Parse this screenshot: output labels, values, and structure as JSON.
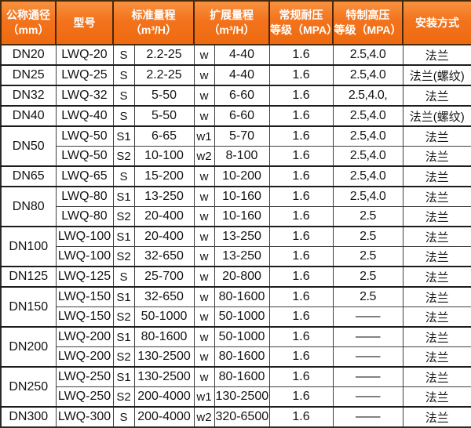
{
  "colors": {
    "header_bg": "#f3731c",
    "header_bg_light": "#f8913f",
    "header_bg_dark": "#ee6a10",
    "header_text": "#ffffff",
    "header_divider": "#46280a",
    "outer_border": "#2b2b29",
    "cell_border": "#3f3f3d",
    "body_text": "#141414"
  },
  "header": {
    "cells": [
      {
        "line1": "公称通径",
        "line2": "（mm）"
      },
      {
        "line1": "型号",
        "line2": ""
      },
      {
        "line1": "标准量程",
        "line2": "（m³/H）"
      },
      {
        "line1": "扩展量程",
        "line2": "（m³/H）"
      },
      {
        "line1": "常规耐压",
        "line2": "等级（MPA）"
      },
      {
        "line1": "特制高压",
        "line2": "等级（MPA）"
      },
      {
        "line1": "安装方式",
        "line2": ""
      }
    ]
  },
  "chart_data": {
    "type": "table",
    "columns": [
      "公称通径（mm）",
      "型号",
      "标准量程代号",
      "标准量程（m³/H）",
      "扩展量程代号",
      "扩展量程（m³/H）",
      "常规耐压等级（MPA）",
      "特制高压等级（MPA）",
      "安装方式"
    ]
  },
  "rows": [
    {
      "dn": "DN20",
      "span": 1,
      "group_start": true,
      "model": "LWQ-20",
      "s": "S",
      "std": "2.2-25",
      "w": "w",
      "ext": "4-40",
      "mpa": "1.6",
      "hp": "2.5,4.0",
      "mount": "法兰"
    },
    {
      "dn": "DN25",
      "span": 1,
      "group_start": true,
      "model": "LWQ-25",
      "s": "S",
      "std": "2.2-25",
      "w": "w",
      "ext": "4-40",
      "mpa": "1.6",
      "hp": "2.5,4.0",
      "mount": "法兰(螺纹)"
    },
    {
      "dn": "DN32",
      "span": 1,
      "group_start": true,
      "model": "LWQ-32",
      "s": "S",
      "std": "5-50",
      "w": "w",
      "ext": "6-60",
      "mpa": "1.6",
      "hp": "2.5,4.0,",
      "mount": "法兰"
    },
    {
      "dn": "DN40",
      "span": 1,
      "group_start": true,
      "model": "LWQ-40",
      "s": "S",
      "std": "5-50",
      "w": "w",
      "ext": "6-60",
      "mpa": "1.6",
      "hp": "2.5,4.0",
      "mount": "法兰(螺纹)"
    },
    {
      "dn": "DN50",
      "span": 2,
      "group_start": true,
      "model": "LWQ-50",
      "s": "S1",
      "std": "6-65",
      "w": "w1",
      "ext": "5-70",
      "mpa": "1.6",
      "hp": "2.5,4.0",
      "mount": "法兰"
    },
    {
      "dn": null,
      "span": 1,
      "group_start": false,
      "model": "LWQ-50",
      "s": "S2",
      "std": "10-100",
      "w": "w2",
      "ext": "8-100",
      "mpa": "1.6",
      "hp": "2.5,4.0",
      "mount": "法兰"
    },
    {
      "dn": "DN65",
      "span": 1,
      "group_start": true,
      "model": "LWQ-65",
      "s": "S",
      "std": "15-200",
      "w": "w",
      "ext": "10-200",
      "mpa": "1.6",
      "hp": "2.5,4.0",
      "mount": "法兰"
    },
    {
      "dn": "DN80",
      "span": 2,
      "group_start": true,
      "model": "LWQ-80",
      "s": "S1",
      "std": "13-250",
      "w": "w",
      "ext": "10-160",
      "mpa": "1.6",
      "hp": "2.5,4.0",
      "mount": "法兰"
    },
    {
      "dn": null,
      "span": 1,
      "group_start": false,
      "model": "LWQ-80",
      "s": "S2",
      "std": "20-400",
      "w": "w",
      "ext": "10-160",
      "mpa": "1.6",
      "hp": "2.5",
      "mount": "法兰"
    },
    {
      "dn": "DN100",
      "span": 2,
      "group_start": true,
      "model": "LWQ-100",
      "s": "S1",
      "std": "20-400",
      "w": "w",
      "ext": "13-250",
      "mpa": "1.6",
      "hp": "2.5",
      "mount": "法兰"
    },
    {
      "dn": null,
      "span": 1,
      "group_start": false,
      "model": "LWQ-100",
      "s": "S2",
      "std": "32-650",
      "w": "w",
      "ext": "13-250",
      "mpa": "1.6",
      "hp": "2.5",
      "mount": "法兰"
    },
    {
      "dn": "DN125",
      "span": 1,
      "group_start": true,
      "model": "LWQ-125",
      "s": "S",
      "std": "25-700",
      "w": "w",
      "ext": "20-800",
      "mpa": "1.6",
      "hp": "2.5",
      "mount": "法兰"
    },
    {
      "dn": "DN150",
      "span": 2,
      "group_start": true,
      "model": "LWQ-150",
      "s": "S1",
      "std": "32-650",
      "w": "w",
      "ext": "80-1600",
      "mpa": "1.6",
      "hp": "2.5",
      "mount": "法兰"
    },
    {
      "dn": null,
      "span": 1,
      "group_start": false,
      "model": "LWQ-150",
      "s": "S2",
      "std": "50-1000",
      "w": "w",
      "ext": "50-1000",
      "mpa": "1.6",
      "hp": "——",
      "mount": "法兰"
    },
    {
      "dn": "DN200",
      "span": 2,
      "group_start": true,
      "model": "LWQ-200",
      "s": "S1",
      "std": "80-1600",
      "w": "w",
      "ext": "50-1000",
      "mpa": "1.6",
      "hp": "——",
      "mount": "法兰"
    },
    {
      "dn": null,
      "span": 1,
      "group_start": false,
      "model": "LWQ-200",
      "s": "S2",
      "std": "130-2500",
      "w": "w",
      "ext": "80-1600",
      "mpa": "1.6",
      "hp": "——",
      "mount": "法兰"
    },
    {
      "dn": "DN250",
      "span": 2,
      "group_start": true,
      "model": "LWQ-250",
      "s": "S1",
      "std": "130-2500",
      "w": "w",
      "ext": "80-1600",
      "mpa": "1.6",
      "hp": "——",
      "mount": "法兰"
    },
    {
      "dn": null,
      "span": 1,
      "group_start": false,
      "model": "LWQ-250",
      "s": "S2",
      "std": "200-4000",
      "w": "w1",
      "ext": "130-2500",
      "mpa": "1.6",
      "hp": "——",
      "mount": "法兰"
    },
    {
      "dn": "DN300",
      "span": 1,
      "group_start": true,
      "model": "LWQ-300",
      "s": "S",
      "std": "200-4000",
      "w": "w2",
      "ext": "320-6500",
      "mpa": "1.6",
      "hp": "——",
      "mount": "法兰"
    }
  ]
}
